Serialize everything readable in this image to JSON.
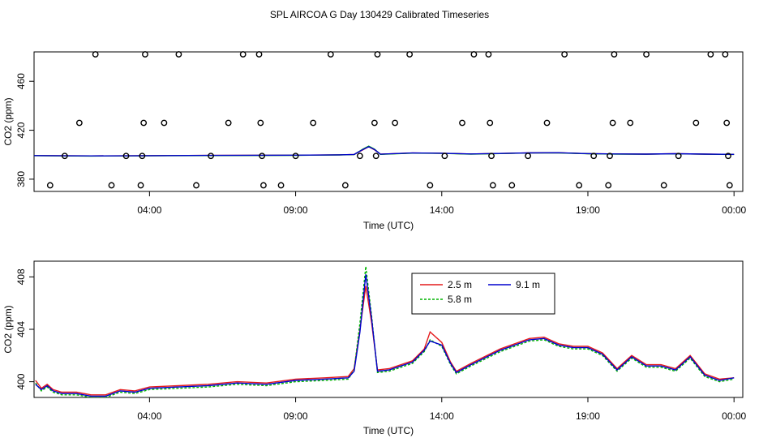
{
  "title": "SPL AIRCOA G  Day 130429  Calibrated Timeseries",
  "chart_data": [
    {
      "type": "line",
      "panel": "top",
      "xlabel": "Time (UTC)",
      "ylabel": "CO2 (ppm)",
      "xlim": [
        0.05,
        24.3
      ],
      "ylim": [
        370,
        484
      ],
      "x_ticks": [
        4,
        9,
        14,
        19,
        24
      ],
      "x_tick_labels": [
        "04:00",
        "09:00",
        "14:00",
        "19:00",
        "00:00"
      ],
      "y_ticks": [
        380,
        420,
        460
      ],
      "y_tick_labels": [
        "380",
        "420",
        "460"
      ],
      "series": [
        {
          "name": "2.5 m",
          "color": "#e41a1c",
          "points": [
            [
              0.05,
              399.3
            ],
            [
              2,
              399.0
            ],
            [
              4,
              399.2
            ],
            [
              6,
              399.4
            ],
            [
              9,
              399.6
            ],
            [
              10.5,
              399.9
            ],
            [
              11,
              400.2
            ],
            [
              11.3,
              404
            ],
            [
              11.5,
              406.5
            ],
            [
              11.7,
              404
            ],
            [
              11.9,
              400.4
            ],
            [
              13,
              401.4
            ],
            [
              14,
              401.2
            ],
            [
              15,
              400.6
            ],
            [
              17,
              401.5
            ],
            [
              18,
              401.6
            ],
            [
              19,
              400.9
            ],
            [
              20,
              400.6
            ],
            [
              21,
              400.5
            ],
            [
              22,
              400.8
            ],
            [
              23,
              400.5
            ],
            [
              24,
              400.3
            ]
          ]
        },
        {
          "name": "5.8 m",
          "color": "#00b400",
          "points": [
            [
              0.05,
              399.2
            ],
            [
              2,
              398.9
            ],
            [
              4,
              399.1
            ],
            [
              6,
              399.3
            ],
            [
              9,
              399.5
            ],
            [
              10.5,
              399.8
            ],
            [
              11,
              400.1
            ],
            [
              11.3,
              404.5
            ],
            [
              11.5,
              407
            ],
            [
              11.7,
              404.5
            ],
            [
              11.9,
              400.3
            ],
            [
              13,
              401.3
            ],
            [
              14,
              401.1
            ],
            [
              15,
              400.5
            ],
            [
              17,
              401.4
            ],
            [
              18,
              401.5
            ],
            [
              19,
              400.8
            ],
            [
              20,
              400.5
            ],
            [
              21,
              400.4
            ],
            [
              22,
              400.7
            ],
            [
              23,
              400.4
            ],
            [
              24,
              400.2
            ]
          ]
        },
        {
          "name": "9.1 m",
          "color": "#0000cd",
          "points": [
            [
              0.05,
              399.3
            ],
            [
              2,
              399.0
            ],
            [
              4,
              399.2
            ],
            [
              6,
              399.4
            ],
            [
              9,
              399.6
            ],
            [
              10.5,
              399.9
            ],
            [
              11,
              400.2
            ],
            [
              11.3,
              404.2
            ],
            [
              11.5,
              406.6
            ],
            [
              11.7,
              404.2
            ],
            [
              11.9,
              400.4
            ],
            [
              13,
              401.4
            ],
            [
              14,
              401.2
            ],
            [
              15,
              400.6
            ],
            [
              17,
              401.5
            ],
            [
              18,
              401.6
            ],
            [
              19,
              400.9
            ],
            [
              20,
              400.6
            ],
            [
              21,
              400.5
            ],
            [
              22,
              400.8
            ],
            [
              23,
              400.5
            ],
            [
              24,
              400.3
            ]
          ]
        }
      ],
      "markers": {
        "type": "open-circle",
        "points": [
          [
            0.6,
            375
          ],
          [
            1.1,
            399
          ],
          [
            1.6,
            426
          ],
          [
            2.15,
            482
          ],
          [
            2.7,
            375
          ],
          [
            3.2,
            399
          ],
          [
            3.7,
            375
          ],
          [
            3.75,
            399
          ],
          [
            3.8,
            426
          ],
          [
            3.85,
            482
          ],
          [
            4.5,
            426
          ],
          [
            5.0,
            482
          ],
          [
            5.6,
            375
          ],
          [
            6.1,
            399
          ],
          [
            6.7,
            426
          ],
          [
            7.2,
            482
          ],
          [
            7.75,
            482
          ],
          [
            7.8,
            426
          ],
          [
            7.85,
            399
          ],
          [
            7.9,
            375
          ],
          [
            8.5,
            375
          ],
          [
            9.0,
            399
          ],
          [
            9.6,
            426
          ],
          [
            10.2,
            482
          ],
          [
            10.7,
            375
          ],
          [
            11.2,
            399
          ],
          [
            11.7,
            426
          ],
          [
            11.75,
            399
          ],
          [
            11.8,
            482
          ],
          [
            12.4,
            426
          ],
          [
            12.9,
            482
          ],
          [
            13.6,
            375
          ],
          [
            14.1,
            399
          ],
          [
            14.7,
            426
          ],
          [
            15.1,
            482
          ],
          [
            15.6,
            482
          ],
          [
            15.65,
            426
          ],
          [
            15.7,
            399
          ],
          [
            15.75,
            375
          ],
          [
            16.4,
            375
          ],
          [
            16.95,
            399
          ],
          [
            17.6,
            426
          ],
          [
            18.2,
            482
          ],
          [
            18.7,
            375
          ],
          [
            19.2,
            399
          ],
          [
            19.7,
            375
          ],
          [
            19.75,
            399
          ],
          [
            19.85,
            426
          ],
          [
            19.9,
            482
          ],
          [
            20.45,
            426
          ],
          [
            21.0,
            482
          ],
          [
            21.6,
            375
          ],
          [
            22.1,
            399
          ],
          [
            22.7,
            426
          ],
          [
            23.2,
            482
          ],
          [
            23.7,
            482
          ],
          [
            23.75,
            426
          ],
          [
            23.8,
            399
          ],
          [
            23.85,
            375
          ]
        ]
      }
    },
    {
      "type": "line",
      "panel": "bottom",
      "xlabel": "Time (UTC)",
      "ylabel": "CO2 (ppm)",
      "xlim": [
        0.05,
        24.3
      ],
      "ylim": [
        398.8,
        409.2
      ],
      "x_ticks": [
        4,
        9,
        14,
        19,
        24
      ],
      "x_tick_labels": [
        "04:00",
        "09:00",
        "14:00",
        "19:00",
        "00:00"
      ],
      "y_ticks": [
        400,
        404,
        408
      ],
      "y_tick_labels": [
        "400",
        "404",
        "408"
      ],
      "legend": {
        "position": "top-center",
        "entries": [
          "2.5 m",
          "9.1 m",
          "5.8 m"
        ]
      },
      "series": [
        {
          "name": "2.5 m",
          "color": "#e41a1c",
          "dash": "",
          "points": [
            [
              0.1,
              400.1
            ],
            [
              0.3,
              399.5
            ],
            [
              0.5,
              399.8
            ],
            [
              0.7,
              399.4
            ],
            [
              1,
              399.2
            ],
            [
              1.5,
              399.2
            ],
            [
              2,
              399.0
            ],
            [
              2.5,
              399.0
            ],
            [
              3,
              399.4
            ],
            [
              3.5,
              399.3
            ],
            [
              4,
              399.6
            ],
            [
              5,
              399.7
            ],
            [
              6,
              399.8
            ],
            [
              7,
              400.0
            ],
            [
              8,
              399.9
            ],
            [
              9,
              400.2
            ],
            [
              10,
              400.3
            ],
            [
              10.8,
              400.4
            ],
            [
              11,
              401
            ],
            [
              11.2,
              404
            ],
            [
              11.4,
              407.3
            ],
            [
              11.6,
              404.5
            ],
            [
              11.8,
              400.9
            ],
            [
              12.2,
              401.0
            ],
            [
              13,
              401.6
            ],
            [
              13.4,
              402.5
            ],
            [
              13.6,
              403.8
            ],
            [
              14,
              403
            ],
            [
              14.3,
              401.5
            ],
            [
              14.5,
              400.8
            ],
            [
              15,
              401.4
            ],
            [
              16,
              402.5
            ],
            [
              17,
              403.3
            ],
            [
              17.5,
              403.4
            ],
            [
              18,
              402.9
            ],
            [
              18.5,
              402.7
            ],
            [
              19,
              402.7
            ],
            [
              19.5,
              402.2
            ],
            [
              20,
              401.0
            ],
            [
              20.5,
              402.0
            ],
            [
              21,
              401.3
            ],
            [
              21.5,
              401.3
            ],
            [
              22,
              401.0
            ],
            [
              22.5,
              402.0
            ],
            [
              23,
              400.6
            ],
            [
              23.5,
              400.2
            ],
            [
              24,
              400.3
            ]
          ]
        },
        {
          "name": "5.8 m",
          "color": "#00b400",
          "dash": "3,2",
          "points": [
            [
              0.1,
              399.9
            ],
            [
              0.3,
              399.3
            ],
            [
              0.5,
              399.6
            ],
            [
              0.7,
              399.2
            ],
            [
              1,
              399.0
            ],
            [
              1.5,
              399.0
            ],
            [
              2,
              398.8
            ],
            [
              2.5,
              398.8
            ],
            [
              3,
              399.2
            ],
            [
              3.5,
              399.1
            ],
            [
              4,
              399.4
            ],
            [
              5,
              399.5
            ],
            [
              6,
              399.6
            ],
            [
              7,
              399.8
            ],
            [
              8,
              399.7
            ],
            [
              9,
              400.0
            ],
            [
              10,
              400.1
            ],
            [
              10.8,
              400.2
            ],
            [
              11,
              400.9
            ],
            [
              11.2,
              404.5
            ],
            [
              11.4,
              408.8
            ],
            [
              11.6,
              405.0
            ],
            [
              11.8,
              400.7
            ],
            [
              12.2,
              400.8
            ],
            [
              13,
              401.4
            ],
            [
              13.4,
              402.3
            ],
            [
              13.6,
              403.2
            ],
            [
              14,
              402.7
            ],
            [
              14.3,
              401.3
            ],
            [
              14.5,
              400.6
            ],
            [
              15,
              401.2
            ],
            [
              16,
              402.3
            ],
            [
              17,
              403.1
            ],
            [
              17.5,
              403.2
            ],
            [
              18,
              402.7
            ],
            [
              18.5,
              402.5
            ],
            [
              19,
              402.5
            ],
            [
              19.5,
              402.0
            ],
            [
              20,
              400.8
            ],
            [
              20.5,
              401.8
            ],
            [
              21,
              401.1
            ],
            [
              21.5,
              401.1
            ],
            [
              22,
              400.8
            ],
            [
              22.5,
              401.8
            ],
            [
              23,
              400.4
            ],
            [
              23.5,
              400.0
            ],
            [
              24,
              400.2
            ]
          ]
        },
        {
          "name": "9.1 m",
          "color": "#0000cd",
          "dash": "",
          "points": [
            [
              0.1,
              399.8
            ],
            [
              0.3,
              399.4
            ],
            [
              0.5,
              399.7
            ],
            [
              0.7,
              399.3
            ],
            [
              1,
              399.1
            ],
            [
              1.5,
              399.1
            ],
            [
              2,
              398.9
            ],
            [
              2.5,
              398.9
            ],
            [
              3,
              399.3
            ],
            [
              3.5,
              399.2
            ],
            [
              4,
              399.5
            ],
            [
              5,
              399.6
            ],
            [
              6,
              399.7
            ],
            [
              7,
              399.9
            ],
            [
              8,
              399.8
            ],
            [
              9,
              400.1
            ],
            [
              10,
              400.2
            ],
            [
              10.8,
              400.3
            ],
            [
              11,
              400.8
            ],
            [
              11.2,
              403.8
            ],
            [
              11.4,
              408.2
            ],
            [
              11.6,
              404.8
            ],
            [
              11.8,
              400.8
            ],
            [
              12.2,
              400.9
            ],
            [
              13,
              401.5
            ],
            [
              13.4,
              402.4
            ],
            [
              13.6,
              403.1
            ],
            [
              14,
              402.8
            ],
            [
              14.3,
              401.4
            ],
            [
              14.5,
              400.7
            ],
            [
              15,
              401.3
            ],
            [
              16,
              402.4
            ],
            [
              17,
              403.2
            ],
            [
              17.5,
              403.3
            ],
            [
              18,
              402.8
            ],
            [
              18.5,
              402.6
            ],
            [
              19,
              402.6
            ],
            [
              19.5,
              402.1
            ],
            [
              20,
              400.9
            ],
            [
              20.5,
              401.9
            ],
            [
              21,
              401.2
            ],
            [
              21.5,
              401.2
            ],
            [
              22,
              400.9
            ],
            [
              22.5,
              401.9
            ],
            [
              23,
              400.5
            ],
            [
              23.5,
              400.1
            ],
            [
              24,
              400.3
            ]
          ]
        }
      ]
    }
  ]
}
